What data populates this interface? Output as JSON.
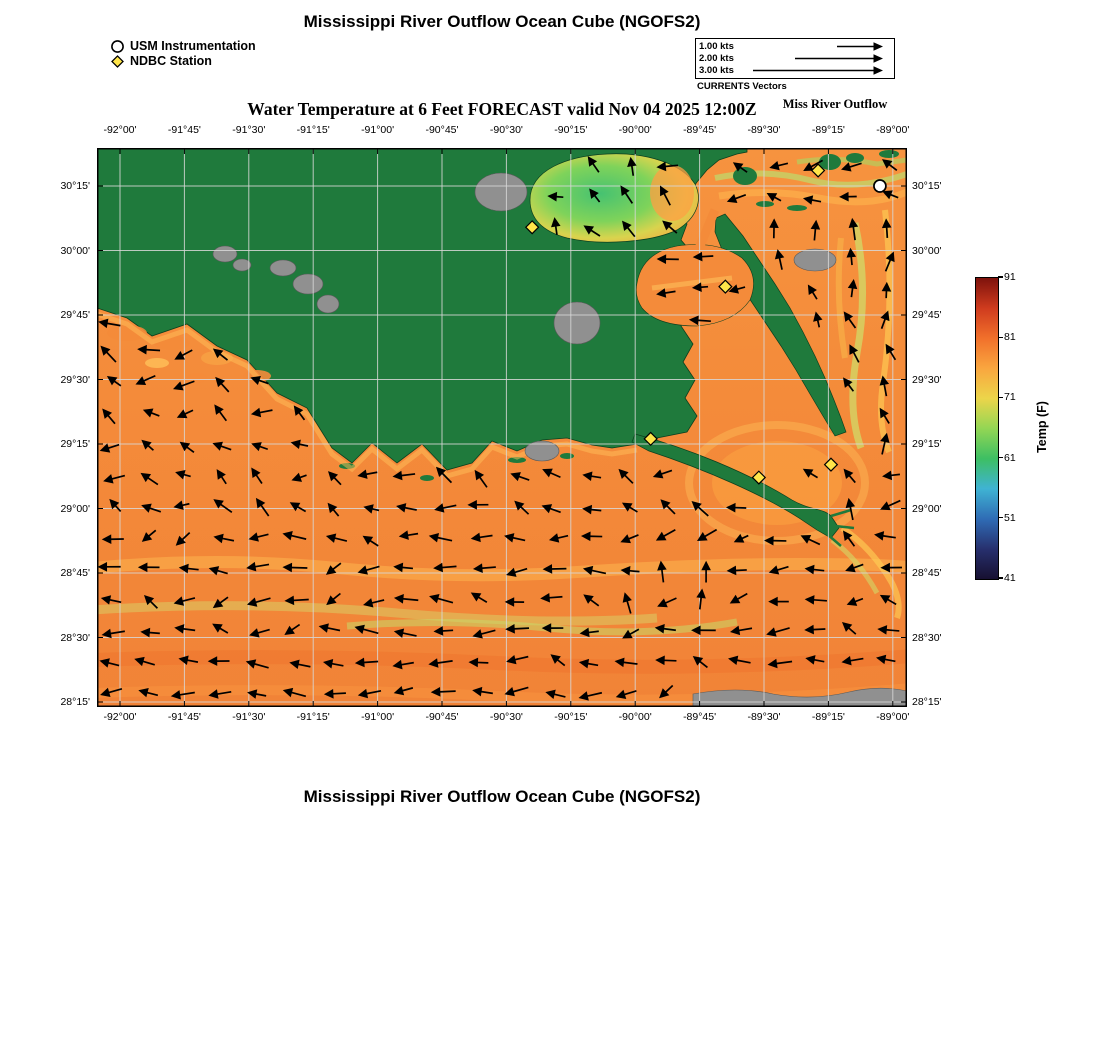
{
  "header": {
    "title": "Mississippi River Outflow Ocean Cube (NGOFS2)",
    "legend": [
      {
        "symbol": "circle",
        "label": "USM Instrumentation"
      },
      {
        "symbol": "diamond",
        "label": "NDBC Station"
      }
    ],
    "currents_legend": {
      "rows": [
        {
          "label": "1.00 kts",
          "speed_kts": 1.0
        },
        {
          "label": "2.00 kts",
          "speed_kts": 2.0
        },
        {
          "label": "3.00 kts",
          "speed_kts": 3.0
        }
      ],
      "caption": "CURRENTS Vectors"
    },
    "watermark": "Miss River Outflow"
  },
  "plot": {
    "title": "Water Temperature at 6 Feet FORECAST valid Nov 04 2025 12:00Z"
  },
  "footer": {
    "title": "Mississippi River Outflow Ocean Cube (NGOFS2)"
  },
  "chart_data": {
    "type": "heatmap",
    "subtype": "geographic ocean-model temperature field with current vector overlay",
    "model": "NGOFS2",
    "region": "Mississippi River Outflow Ocean Cube",
    "variable": "Water Temperature",
    "depth": "6 Feet",
    "mode": "FORECAST",
    "valid_time": "Nov 04 2025 12:00Z",
    "xlim_lon": [
      -92.09,
      -88.94
    ],
    "ylim_lat": [
      28.23,
      30.4
    ],
    "x_ticks": [
      "-92°00'",
      "-91°45'",
      "-91°30'",
      "-91°15'",
      "-91°00'",
      "-90°45'",
      "-90°30'",
      "-90°15'",
      "-90°00'",
      "-89°45'",
      "-89°30'",
      "-89°15'",
      "-89°00'"
    ],
    "x_tick_values": [
      -92.0,
      -91.75,
      -91.5,
      -91.25,
      -91.0,
      -90.75,
      -90.5,
      -90.25,
      -90.0,
      -89.75,
      -89.5,
      -89.25,
      -89.0
    ],
    "y_ticks": [
      "30°15'",
      "30°00'",
      "29°45'",
      "29°30'",
      "29°15'",
      "29°00'",
      "28°45'",
      "28°30'",
      "28°15'"
    ],
    "y_tick_values": [
      30.25,
      30.0,
      29.75,
      29.5,
      29.25,
      29.0,
      28.75,
      28.5,
      28.25
    ],
    "grid": true,
    "colorbar": {
      "label": "Temp (F)",
      "ticks": [
        91,
        81,
        71,
        61,
        51,
        41
      ],
      "min": 41,
      "max": 91,
      "stops": [
        {
          "value": 41,
          "color": "#171031"
        },
        {
          "value": 46,
          "color": "#27306e"
        },
        {
          "value": 51,
          "color": "#2f6cb5"
        },
        {
          "value": 56,
          "color": "#3fb3d3"
        },
        {
          "value": 61,
          "color": "#3dbf63"
        },
        {
          "value": 66,
          "color": "#93d654"
        },
        {
          "value": 71,
          "color": "#ecd54a"
        },
        {
          "value": 76,
          "color": "#f9a63f"
        },
        {
          "value": 81,
          "color": "#f1702b"
        },
        {
          "value": 86,
          "color": "#cf3b1e"
        },
        {
          "value": 91,
          "color": "#7e120c"
        }
      ]
    },
    "approx_field_values_F": {
      "open_gulf": 77,
      "coastal_shelf": 74,
      "lake_pontchartrain": 63,
      "mississippi_sound": 73,
      "chandeleur_sound": 72
    },
    "vector_field": {
      "units": "kts",
      "legend_speeds": [
        1.0,
        2.0,
        3.0
      ],
      "dominant_direction": "westward in open Gulf, northward in Chandeleur Sound, mixed near delta and lakes"
    },
    "stations": {
      "usm_instrumentation": [
        {
          "lon": -89.05,
          "lat": 30.25
        }
      ],
      "ndbc": [
        {
          "lon": -90.4,
          "lat": 30.09
        },
        {
          "lon": -89.29,
          "lat": 30.31
        },
        {
          "lon": -89.65,
          "lat": 29.86
        },
        {
          "lon": -89.94,
          "lat": 29.27
        },
        {
          "lon": -89.52,
          "lat": 29.12
        },
        {
          "lon": -89.24,
          "lat": 29.17
        }
      ]
    }
  }
}
